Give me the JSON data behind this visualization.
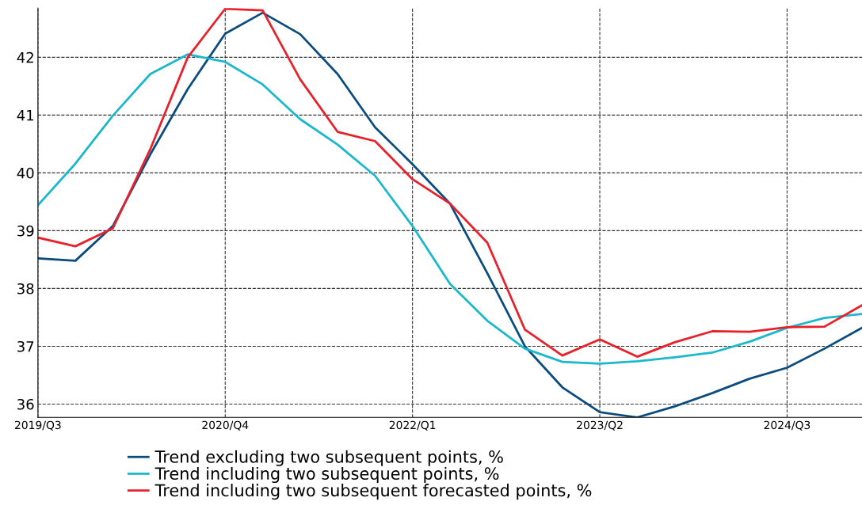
{
  "chart_data": {
    "type": "line",
    "categories": [
      "2019/Q3",
      null,
      null,
      null,
      null,
      "2020/Q4",
      null,
      null,
      null,
      null,
      "2022/Q1",
      null,
      null,
      null,
      null,
      "2023/Q2",
      null,
      null,
      null,
      null,
      "2024/Q3",
      null,
      null
    ],
    "series": [
      {
        "name": "Trend excluding two subsequent points, %",
        "color": "#0b4c7f",
        "values": [
          38.52,
          38.48,
          39.08,
          40.32,
          41.45,
          42.41,
          42.77,
          42.4,
          41.71,
          40.79,
          40.15,
          39.47,
          38.26,
          37.0,
          36.29,
          35.86,
          35.77,
          35.96,
          36.19,
          36.44,
          36.63,
          36.96,
          37.32
        ]
      },
      {
        "name": "Trend including two subsequent points, %",
        "color": "#1bb8cc",
        "values": [
          39.44,
          40.16,
          40.99,
          41.71,
          42.05,
          41.92,
          41.53,
          40.93,
          40.49,
          39.95,
          39.08,
          38.08,
          37.44,
          36.96,
          36.73,
          36.7,
          36.74,
          36.81,
          36.89,
          37.08,
          37.32,
          37.49,
          37.56
        ]
      },
      {
        "name": "Trend including two subsequent forecasted points, %",
        "color": "#e8202a",
        "values": [
          38.88,
          38.73,
          39.04,
          40.41,
          42.0,
          42.84,
          42.81,
          41.62,
          40.71,
          40.55,
          39.89,
          39.47,
          38.79,
          37.29,
          36.84,
          37.12,
          36.82,
          37.07,
          37.26,
          37.25,
          37.33,
          37.34,
          37.71
        ]
      }
    ],
    "ylim": [
      35.77,
      42.85
    ],
    "yticks": [
      36,
      37,
      38,
      39,
      40,
      41,
      42
    ],
    "grid": true,
    "legend": "bottom",
    "marker": "none",
    "line_style": "solid"
  }
}
